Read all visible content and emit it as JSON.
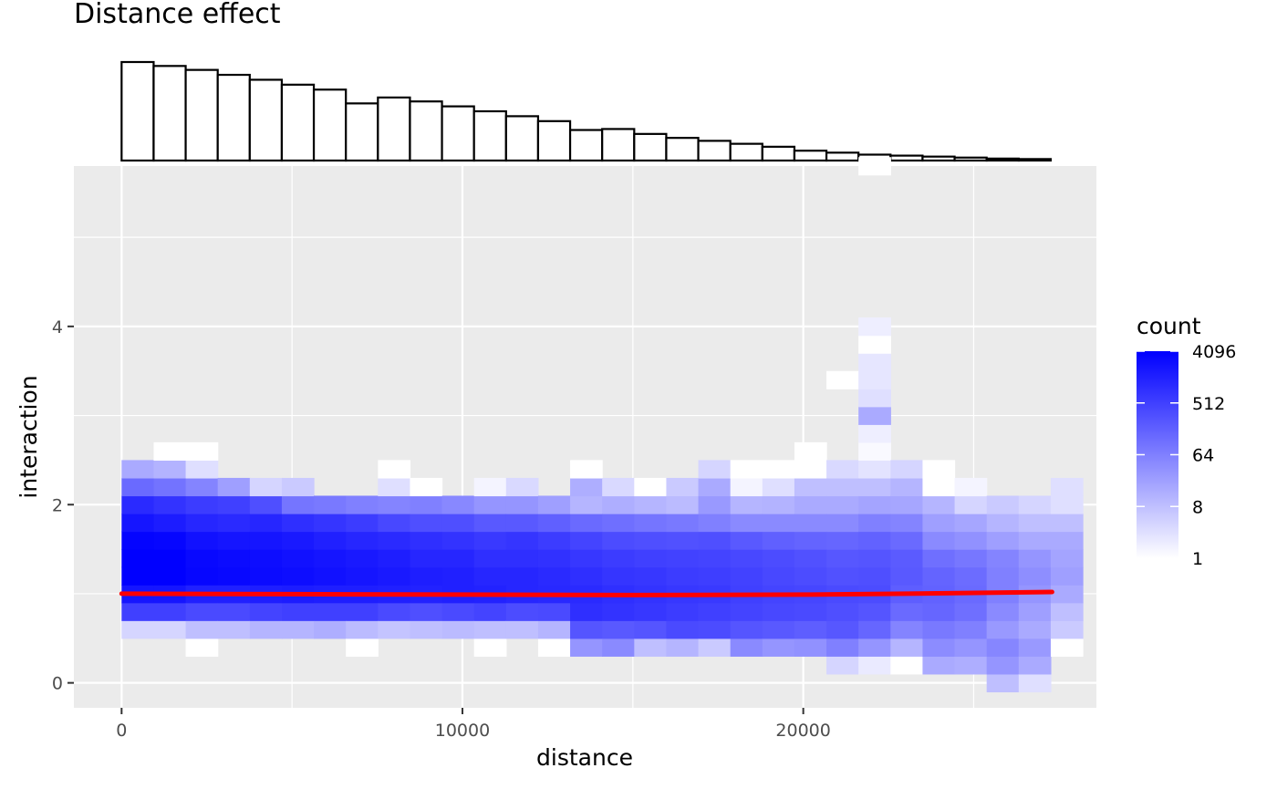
{
  "chart_data": {
    "type": "heatmap",
    "title": "Distance effect",
    "xlabel": "distance",
    "ylabel": "interaction",
    "xlim": [
      -1400,
      28600
    ],
    "ylim": [
      -0.28,
      5.8
    ],
    "x_ticks": [
      0,
      10000,
      20000
    ],
    "x_tick_labels": [
      "0",
      "10000",
      "20000"
    ],
    "y_ticks": [
      0,
      2,
      4
    ],
    "y_tick_labels": [
      "0",
      "2",
      "4"
    ],
    "grid": true,
    "bin_width_x": 940,
    "bin_height_y": 0.2,
    "legend": {
      "title": "count",
      "position": "right",
      "scale": "log2",
      "min": 1,
      "max": 4096,
      "breaks": [
        4096,
        512,
        64,
        8,
        1
      ],
      "break_labels": [
        "4096",
        "512",
        "64",
        "8",
        "1"
      ],
      "color_low": "#ffffff",
      "color_high": "#0000ff"
    },
    "fit_line": {
      "color": "#ff0000",
      "x": [
        0,
        5000,
        10000,
        15000,
        20000,
        23000,
        27300
      ],
      "y": [
        1.0,
        0.995,
        0.99,
        0.985,
        0.99,
        1.0,
        1.02
      ]
    },
    "histogram": {
      "bin_edges": [
        0,
        940,
        1880,
        2820,
        3760,
        4700,
        5640,
        6580,
        7520,
        8460,
        9400,
        10340,
        11280,
        12220,
        13160,
        14100,
        15040,
        15980,
        16920,
        17860,
        18800,
        19740,
        20680,
        21620,
        22560,
        23500,
        24440,
        25380,
        26320,
        27260
      ],
      "counts": [
        100,
        96,
        92,
        87,
        82,
        77,
        72,
        58,
        64,
        60,
        55,
        50,
        45,
        40,
        31,
        32,
        27,
        23,
        20,
        17,
        14,
        10,
        8,
        6,
        5,
        4,
        3,
        2,
        1.5
      ]
    },
    "columns": [
      {
        "x": 0,
        "ymin": 0.5,
        "cells": [
          2,
          9,
          11,
          12,
          12.3,
          11.8,
          11,
          10,
          7,
          4
        ]
      },
      {
        "x": 940,
        "ymin": 0.5,
        "cells": [
          2,
          9,
          11,
          12,
          12,
          11.7,
          10.7,
          9.6,
          6.6,
          3.6,
          0
        ]
      },
      {
        "x": 1880,
        "ymin": 0.3,
        "cells": [
          0,
          3,
          8.5,
          10.5,
          11.7,
          11.6,
          11.2,
          10.2,
          9.2,
          5.8,
          1.5,
          0
        ]
      },
      {
        "x": 2820,
        "ymin": 0.5,
        "cells": [
          3,
          8.5,
          10.5,
          11.6,
          11.5,
          11.0,
          10.0,
          9.0,
          4.5
        ]
      },
      {
        "x": 3760,
        "ymin": 0.5,
        "cells": [
          3.5,
          8.8,
          10.6,
          11.5,
          11.4,
          11.0,
          10.2,
          8.3,
          2
        ]
      },
      {
        "x": 4700,
        "ymin": 0.5,
        "cells": [
          3.5,
          9,
          10.7,
          11.4,
          11.2,
          10.8,
          9.8,
          6.5,
          2.5
        ]
      },
      {
        "x": 5640,
        "ymin": 0.5,
        "cells": [
          3.8,
          9,
          10.6,
          11.2,
          11.0,
          10.5,
          9.5,
          6.3
        ]
      },
      {
        "x": 6580,
        "ymin": 0.3,
        "cells": [
          0,
          3.2,
          9,
          10.6,
          11.0,
          10.8,
          10.2,
          9.2,
          6
        ]
      },
      {
        "x": 7520,
        "ymin": 0.5,
        "cells": [
          2.8,
          8.5,
          10.5,
          10.8,
          10.6,
          10.0,
          8.6,
          5.8,
          1.5,
          0
        ]
      },
      {
        "x": 8460,
        "ymin": 0.5,
        "cells": [
          3,
          8.3,
          10.4,
          10.6,
          10.2,
          9.8,
          8.3,
          6,
          0
        ]
      },
      {
        "x": 9400,
        "ymin": 0.5,
        "cells": [
          3.2,
          8.5,
          10.5,
          10.5,
          10.2,
          9.6,
          8.3,
          5.6
        ]
      },
      {
        "x": 10340,
        "ymin": 0.3,
        "cells": [
          0,
          3,
          8.8,
          10.4,
          10.2,
          9.8,
          9.3,
          7.8,
          5,
          0.5
        ]
      },
      {
        "x": 11280,
        "ymin": 0.5,
        "cells": [
          3,
          8.4,
          10.2,
          10.2,
          9.8,
          9.5,
          7.8,
          5,
          1.8
        ]
      },
      {
        "x": 12220,
        "ymin": 0.3,
        "cells": [
          0,
          3.5,
          8.5,
          10.1,
          10.0,
          9.7,
          9.2,
          7.5,
          4.5
        ]
      },
      {
        "x": 13160,
        "ymin": 0.3,
        "cells": [
          5,
          8,
          9.8,
          10.0,
          9.8,
          9.4,
          8.8,
          7,
          3.5,
          3.8,
          0
        ]
      },
      {
        "x": 14100,
        "ymin": 0.3,
        "cells": [
          5.5,
          7.8,
          9.6,
          9.8,
          9.5,
          9.2,
          8.4,
          6.8,
          3.8,
          1.8
        ]
      },
      {
        "x": 15040,
        "ymin": 0.3,
        "cells": [
          3,
          8,
          9.4,
          9.6,
          9.4,
          9.0,
          8.3,
          6.5,
          3.5,
          0
        ]
      },
      {
        "x": 15980,
        "ymin": 0.3,
        "cells": [
          3.5,
          8.5,
          9.2,
          9.4,
          9.2,
          8.9,
          8.2,
          6.3,
          3.2,
          2.5
        ]
      },
      {
        "x": 16920,
        "ymin": 0.3,
        "cells": [
          2.5,
          8.4,
          9.0,
          9.3,
          9.1,
          8.8,
          8.3,
          6,
          4.8,
          4,
          2
        ]
      },
      {
        "x": 17860,
        "ymin": 0.3,
        "cells": [
          5.5,
          8,
          8.8,
          9.0,
          8.9,
          8.6,
          7.8,
          5.5,
          3.5,
          0.5,
          0
        ]
      },
      {
        "x": 18800,
        "ymin": 0.3,
        "cells": [
          5,
          7.8,
          8.6,
          8.8,
          8.6,
          8.4,
          7.5,
          5.5,
          3.6,
          1.5,
          0
        ]
      },
      {
        "x": 19740,
        "ymin": 0.3,
        "cells": [
          5.2,
          7.6,
          8.5,
          8.7,
          8.4,
          8.2,
          7.3,
          5.5,
          4,
          3,
          0,
          0
        ]
      },
      {
        "x": 20680,
        "ymin": 0.1,
        "cells": [
          2,
          6,
          7.9,
          8.3,
          8.5,
          8.2,
          7.9,
          7.2,
          5.5,
          4,
          3,
          1.8,
          -1,
          -1,
          -1,
          -1,
          0
        ]
      },
      {
        "x": 21620,
        "ymin": 0.1,
        "cells": [
          1,
          5,
          7.2,
          8.0,
          8.4,
          8.3,
          8.0,
          7.4,
          6,
          4.3,
          3,
          1.3,
          0.3,
          0.8,
          4,
          1.5,
          1.2,
          1.2,
          0,
          0.8,
          -1,
          -1,
          -1,
          -1,
          -1,
          -1,
          -1,
          -1,
          0
        ]
      },
      {
        "x": 22560,
        "ymin": 0.1,
        "cells": [
          0,
          3.5,
          5.8,
          7.0,
          7.6,
          7.8,
          7.7,
          7.0,
          5.8,
          4.2,
          3.5,
          2
        ]
      },
      {
        "x": 23500,
        "ymin": 0.1,
        "cells": [
          4,
          5.4,
          6.3,
          7.2,
          7.4,
          7.3,
          6.8,
          5.5,
          4.5,
          3.5,
          0,
          0
        ]
      },
      {
        "x": 24440,
        "ymin": 0.1,
        "cells": [
          3.8,
          5.0,
          6.0,
          6.8,
          7.0,
          6.9,
          6.4,
          5.2,
          4.2,
          2,
          0.5
        ]
      },
      {
        "x": 25380,
        "ymin": -0.1,
        "cells": [
          3,
          5,
          5.7,
          4.8,
          5.5,
          6.0,
          6.0,
          5.8,
          4.5,
          3.5,
          2.5
        ]
      },
      {
        "x": 26320,
        "ymin": -0.1,
        "cells": [
          1.5,
          4,
          4.8,
          4.0,
          4.5,
          5.0,
          5.3,
          5.0,
          4,
          3,
          2
        ]
      },
      {
        "x": 27260,
        "ymin": 0.3,
        "cells": [
          0,
          2.5,
          3,
          4.0,
          4.5,
          4.3,
          4.0,
          3.0,
          1.5,
          1.5
        ]
      }
    ]
  }
}
